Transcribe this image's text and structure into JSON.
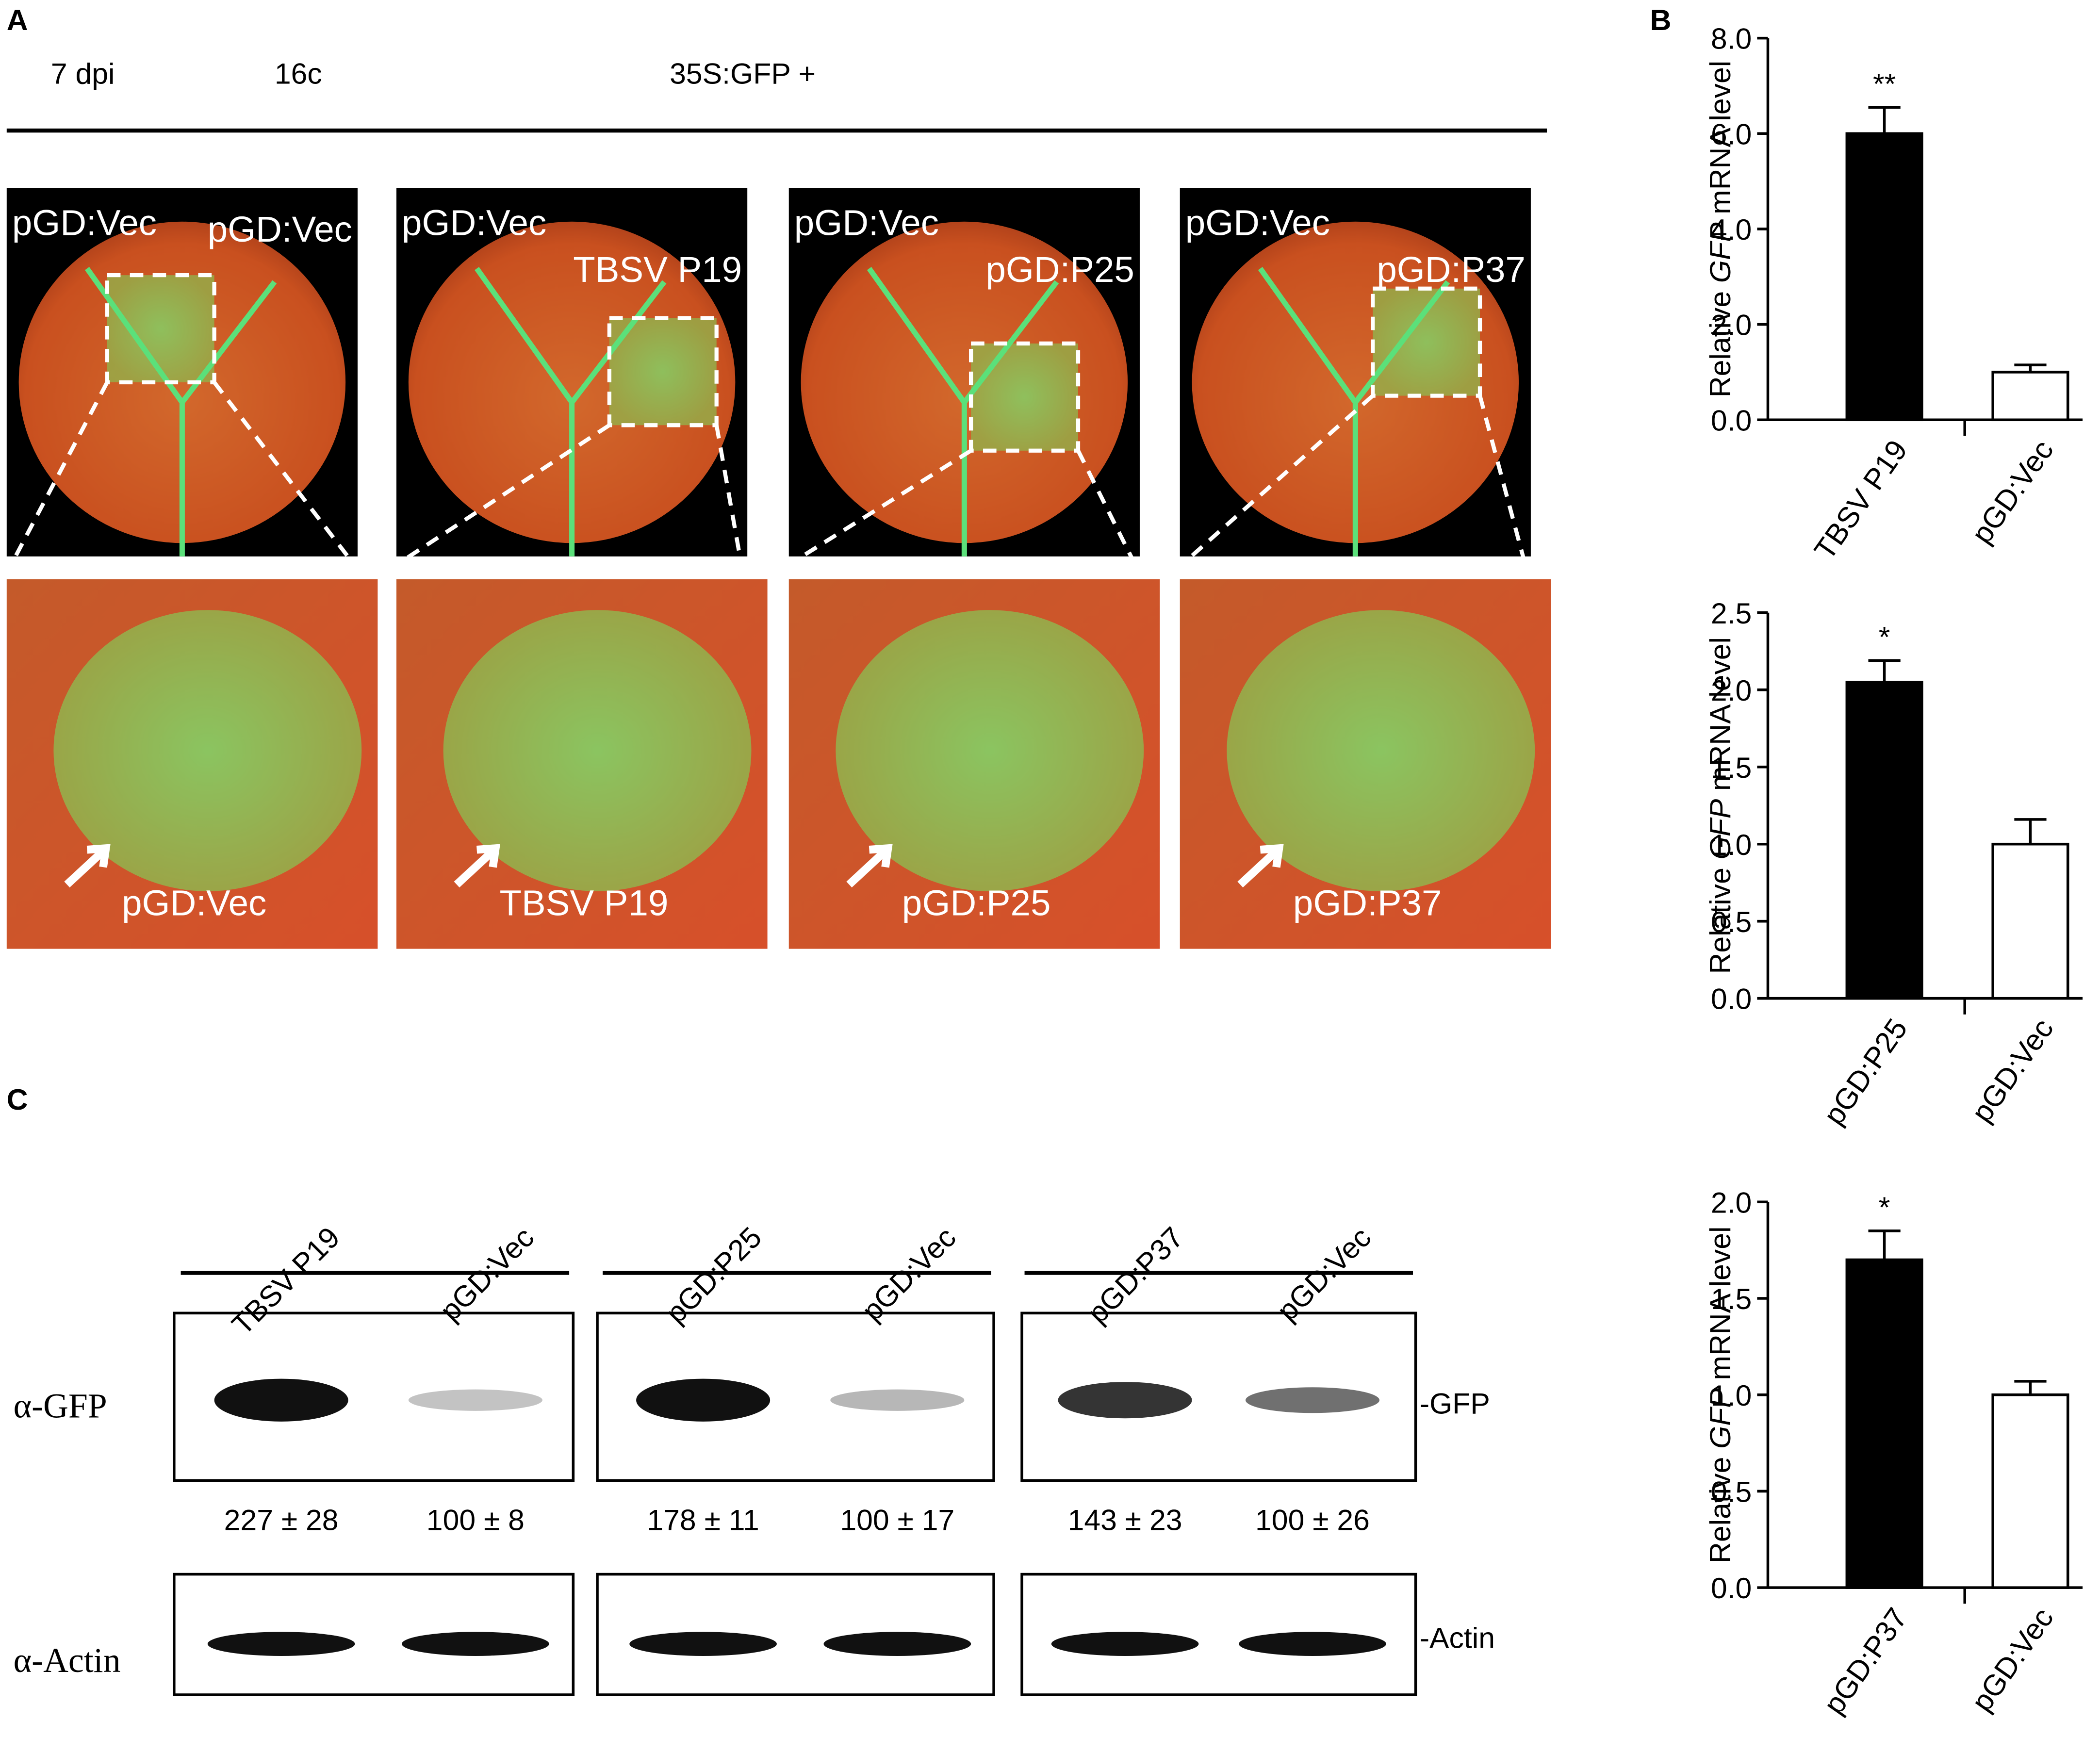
{
  "panel_labels": [
    "A",
    "B",
    "C"
  ],
  "panel_a": {
    "header": [
      "7 dpi",
      "16c",
      "35S:GFP +"
    ],
    "leaf_labels": [
      [
        "pGD:Vec",
        "pGD:Vec"
      ],
      [
        "pGD:Vec",
        "TBSV P19"
      ],
      [
        "pGD:Vec",
        "pGD:P25"
      ],
      [
        "pGD:Vec",
        "pGD:P37"
      ]
    ],
    "zoom_labels": [
      "pGD:Vec",
      "TBSV P19",
      "pGD:P25",
      "pGD:P37"
    ]
  },
  "chart_data": [
    {
      "type": "bar",
      "y_label": [
        "Relative",
        "GFP",
        "mRNA level"
      ],
      "categories": [
        "TBSV P19",
        "pGD:Vec"
      ],
      "values": [
        6.0,
        1.0
      ],
      "errors": [
        0.55,
        0.15
      ],
      "significance": [
        "**",
        null
      ],
      "colors": [
        "#000000",
        "#ffffff"
      ],
      "ylim": [
        0,
        8
      ],
      "yticks": [
        {
          "value": 0,
          "label": "0.0"
        },
        {
          "value": 2,
          "label": "2.0"
        },
        {
          "value": 4,
          "label": "4.0"
        },
        {
          "value": 6,
          "label": "6.0"
        },
        {
          "value": 8,
          "label": "8.0"
        }
      ]
    },
    {
      "type": "bar",
      "y_label": [
        "Relative",
        "GFP",
        "mRNA level"
      ],
      "categories": [
        "pGD:P25",
        "pGD:Vec"
      ],
      "values": [
        2.05,
        1.0
      ],
      "errors": [
        0.14,
        0.16
      ],
      "significance": [
        "*",
        null
      ],
      "colors": [
        "#000000",
        "#ffffff"
      ],
      "ylim": [
        0,
        2.5
      ],
      "yticks": [
        {
          "value": 0,
          "label": "0.0"
        },
        0.5,
        {
          "value": 1,
          "label": "1.0"
        },
        1.5,
        {
          "value": 2,
          "label": "2.0"
        },
        2.5
      ]
    },
    {
      "type": "bar",
      "y_label": [
        "Relative",
        "GFP",
        "mRNA level"
      ],
      "categories": [
        "pGD:P37",
        "pGD:Vec"
      ],
      "values": [
        1.7,
        1.0
      ],
      "errors": [
        0.15,
        0.07
      ],
      "significance": [
        "*",
        null
      ],
      "colors": [
        "#000000",
        "#ffffff"
      ],
      "ylim": [
        0,
        2
      ],
      "yticks": [
        {
          "value": 0,
          "label": "0.0"
        },
        0.5,
        {
          "value": 1,
          "label": "1.0"
        },
        1.5,
        {
          "value": 2,
          "label": "2.0"
        }
      ]
    }
  ],
  "panel_c": {
    "lanes": [
      "TBSV P19",
      "pGD:Vec",
      "pGD:P25",
      "pGD:Vec",
      "pGD:P37",
      "pGD:Vec"
    ],
    "row_labels": [
      "α-GFP",
      "α-Actin"
    ],
    "band_labels": [
      "-GFP",
      "-Actin"
    ],
    "quantification": [
      "227 ± 28",
      "100 ± 8",
      "178 ± 11",
      "100 ± 17",
      "143 ± 23",
      "100 ± 26"
    ]
  }
}
